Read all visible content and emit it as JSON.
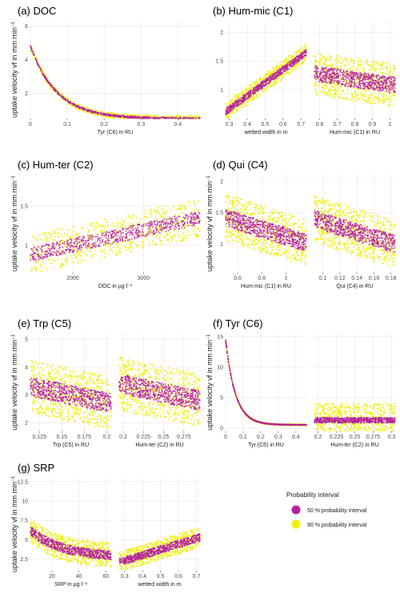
{
  "figure": {
    "ylabel_text": "uptake velocity vf in mm min",
    "ylabel_sup": "−1"
  },
  "colors": {
    "p50": "#b4219e",
    "p90": "#f0f012"
  },
  "legend": {
    "title": "Probability interval",
    "items": [
      "50 % probability interval",
      "90 % probability interval"
    ]
  },
  "chart_data": [
    {
      "title": "(a) DOC",
      "type": "scatter",
      "grid": true,
      "show_ylabel": true,
      "yticks": [
        2,
        4,
        6
      ],
      "ylim": [
        0.5,
        6.3
      ],
      "panes": [
        {
          "xlabel": "Tyr (C6) in RU",
          "xlim": [
            0,
            0.46
          ],
          "xticks": [
            0.0,
            0.1,
            0.2,
            0.3,
            0.4
          ],
          "shape": "decay",
          "lo": 0.5,
          "hi": 4.8,
          "k": 14,
          "spread50": 0.12,
          "spread90": 0.32
        }
      ]
    },
    {
      "title": "(b) Hum-mic (C1)",
      "type": "scatter",
      "grid": true,
      "show_ylabel": false,
      "yticks": [
        1.0,
        1.5,
        2.0
      ],
      "ylim": [
        0.5,
        2.2
      ],
      "panes": [
        {
          "xlabel": "wetted width in m",
          "xlim": [
            0.28,
            0.73
          ],
          "xticks": [
            0.3,
            0.4,
            0.5,
            0.6,
            0.7
          ],
          "shape": "linear",
          "y0": 0.62,
          "y1": 1.65,
          "spread50": 0.12,
          "spread90": 0.32
        },
        {
          "xlabel": "Hum-mic (C1) in RU",
          "xlim": [
            0.57,
            1.03
          ],
          "xticks": [
            0.6,
            0.7,
            0.8,
            0.9,
            1.0
          ],
          "shape": "linear",
          "y0": 1.28,
          "y1": 1.08,
          "spread50": 0.28,
          "spread90": 0.75
        }
      ]
    },
    {
      "title": "(c) Hum-ter (C2)",
      "type": "scatter",
      "grid": true,
      "show_ylabel": true,
      "yticks": [
        1.0,
        1.5
      ],
      "ylim": [
        0.65,
        1.9
      ],
      "panes": [
        {
          "xlabel": "DOC in µg l⁻¹",
          "xlim": [
            1400,
            3800
          ],
          "xticks": [
            2000,
            3000
          ],
          "shape": "linear",
          "y0": 0.88,
          "y1": 1.35,
          "spread50": 0.18,
          "spread90": 0.5
        }
      ]
    },
    {
      "title": "(d) Qui (C4)",
      "type": "scatter",
      "grid": true,
      "show_ylabel": true,
      "yticks": [
        1.0,
        1.5,
        2.0
      ],
      "ylim": [
        0.55,
        2.1
      ],
      "panes": [
        {
          "xlabel": "Hum-mic (C1) in RU",
          "xlim": [
            0.5,
            1.17
          ],
          "xticks": [
            0.6,
            0.8,
            1.0
          ],
          "shape": "linear",
          "y0": 1.42,
          "y1": 1.02,
          "spread50": 0.28,
          "spread90": 0.75
        },
        {
          "xlabel": "Qui (C4) in RU",
          "xlim": [
            0.09,
            0.185
          ],
          "xticks": [
            0.1,
            0.12,
            0.14,
            0.16,
            0.18
          ],
          "shape": "linear",
          "y0": 1.4,
          "y1": 1.0,
          "spread50": 0.28,
          "spread90": 0.75
        }
      ]
    },
    {
      "title": "(e) Trp (C5)",
      "type": "scatter",
      "grid": true,
      "show_ylabel": true,
      "yticks": [
        2,
        3,
        4,
        5
      ],
      "ylim": [
        1.7,
        5.2
      ],
      "panes": [
        {
          "xlabel": "Trp (C5) in RU",
          "xlim": [
            0.115,
            0.205
          ],
          "xticks": [
            0.125,
            0.15,
            0.175,
            0.2
          ],
          "shape": "linear",
          "y0": 3.3,
          "y1": 2.7,
          "spread50": 0.7,
          "spread90": 1.9
        },
        {
          "xlabel": "Hum-ter (C2) in RU",
          "xlim": [
            0.195,
            0.295
          ],
          "xticks": [
            0.2,
            0.225,
            0.25,
            0.275
          ],
          "shape": "linear",
          "y0": 3.4,
          "y1": 2.8,
          "spread50": 0.7,
          "spread90": 1.9
        }
      ]
    },
    {
      "title": "(f) Tyr (C6)",
      "type": "scatter",
      "grid": true,
      "show_ylabel": true,
      "yticks": [
        0,
        5,
        10,
        15
      ],
      "ylim": [
        -0.5,
        15.5
      ],
      "panes": [
        {
          "xlabel": "Tyr (C6) in RU",
          "xlim": [
            0,
            0.46
          ],
          "xticks": [
            0.0,
            0.1,
            0.2,
            0.3,
            0.4
          ],
          "shape": "decay",
          "lo": 0.55,
          "hi": 14.5,
          "k": 18,
          "spread50": 0.12,
          "spread90": 0.25
        },
        {
          "xlabel": "Hum-ter (C2) in RU",
          "xlim": [
            0.195,
            0.305
          ],
          "xticks": [
            0.2,
            0.225,
            0.25,
            0.275,
            0.3
          ],
          "shape": "linear",
          "y0": 1.3,
          "y1": 1.3,
          "spread50": 0.9,
          "spread90": 5.5
        }
      ]
    },
    {
      "title": "(g) SRP",
      "type": "scatter",
      "grid": true,
      "show_ylabel": true,
      "yticks": [
        2.5,
        5.0,
        7.5,
        10.0,
        12.5
      ],
      "ylim": [
        1.0,
        13.0
      ],
      "panes": [
        {
          "xlabel": "SRP in µg l⁻¹",
          "xlim": [
            4,
            64
          ],
          "xticks": [
            20,
            40,
            60
          ],
          "shape": "decay2",
          "lo": 2.8,
          "hi": 6.2,
          "k": 0.045,
          "spread50": 1.2,
          "spread90": 3.2
        },
        {
          "xlabel": "wetted width in m",
          "xlim": [
            0.27,
            0.72
          ],
          "xticks": [
            0.3,
            0.4,
            0.5,
            0.6,
            0.7
          ],
          "shape": "linear",
          "y0": 2.1,
          "y1": 5.3,
          "spread50": 1.0,
          "spread90": 2.6
        }
      ]
    }
  ]
}
